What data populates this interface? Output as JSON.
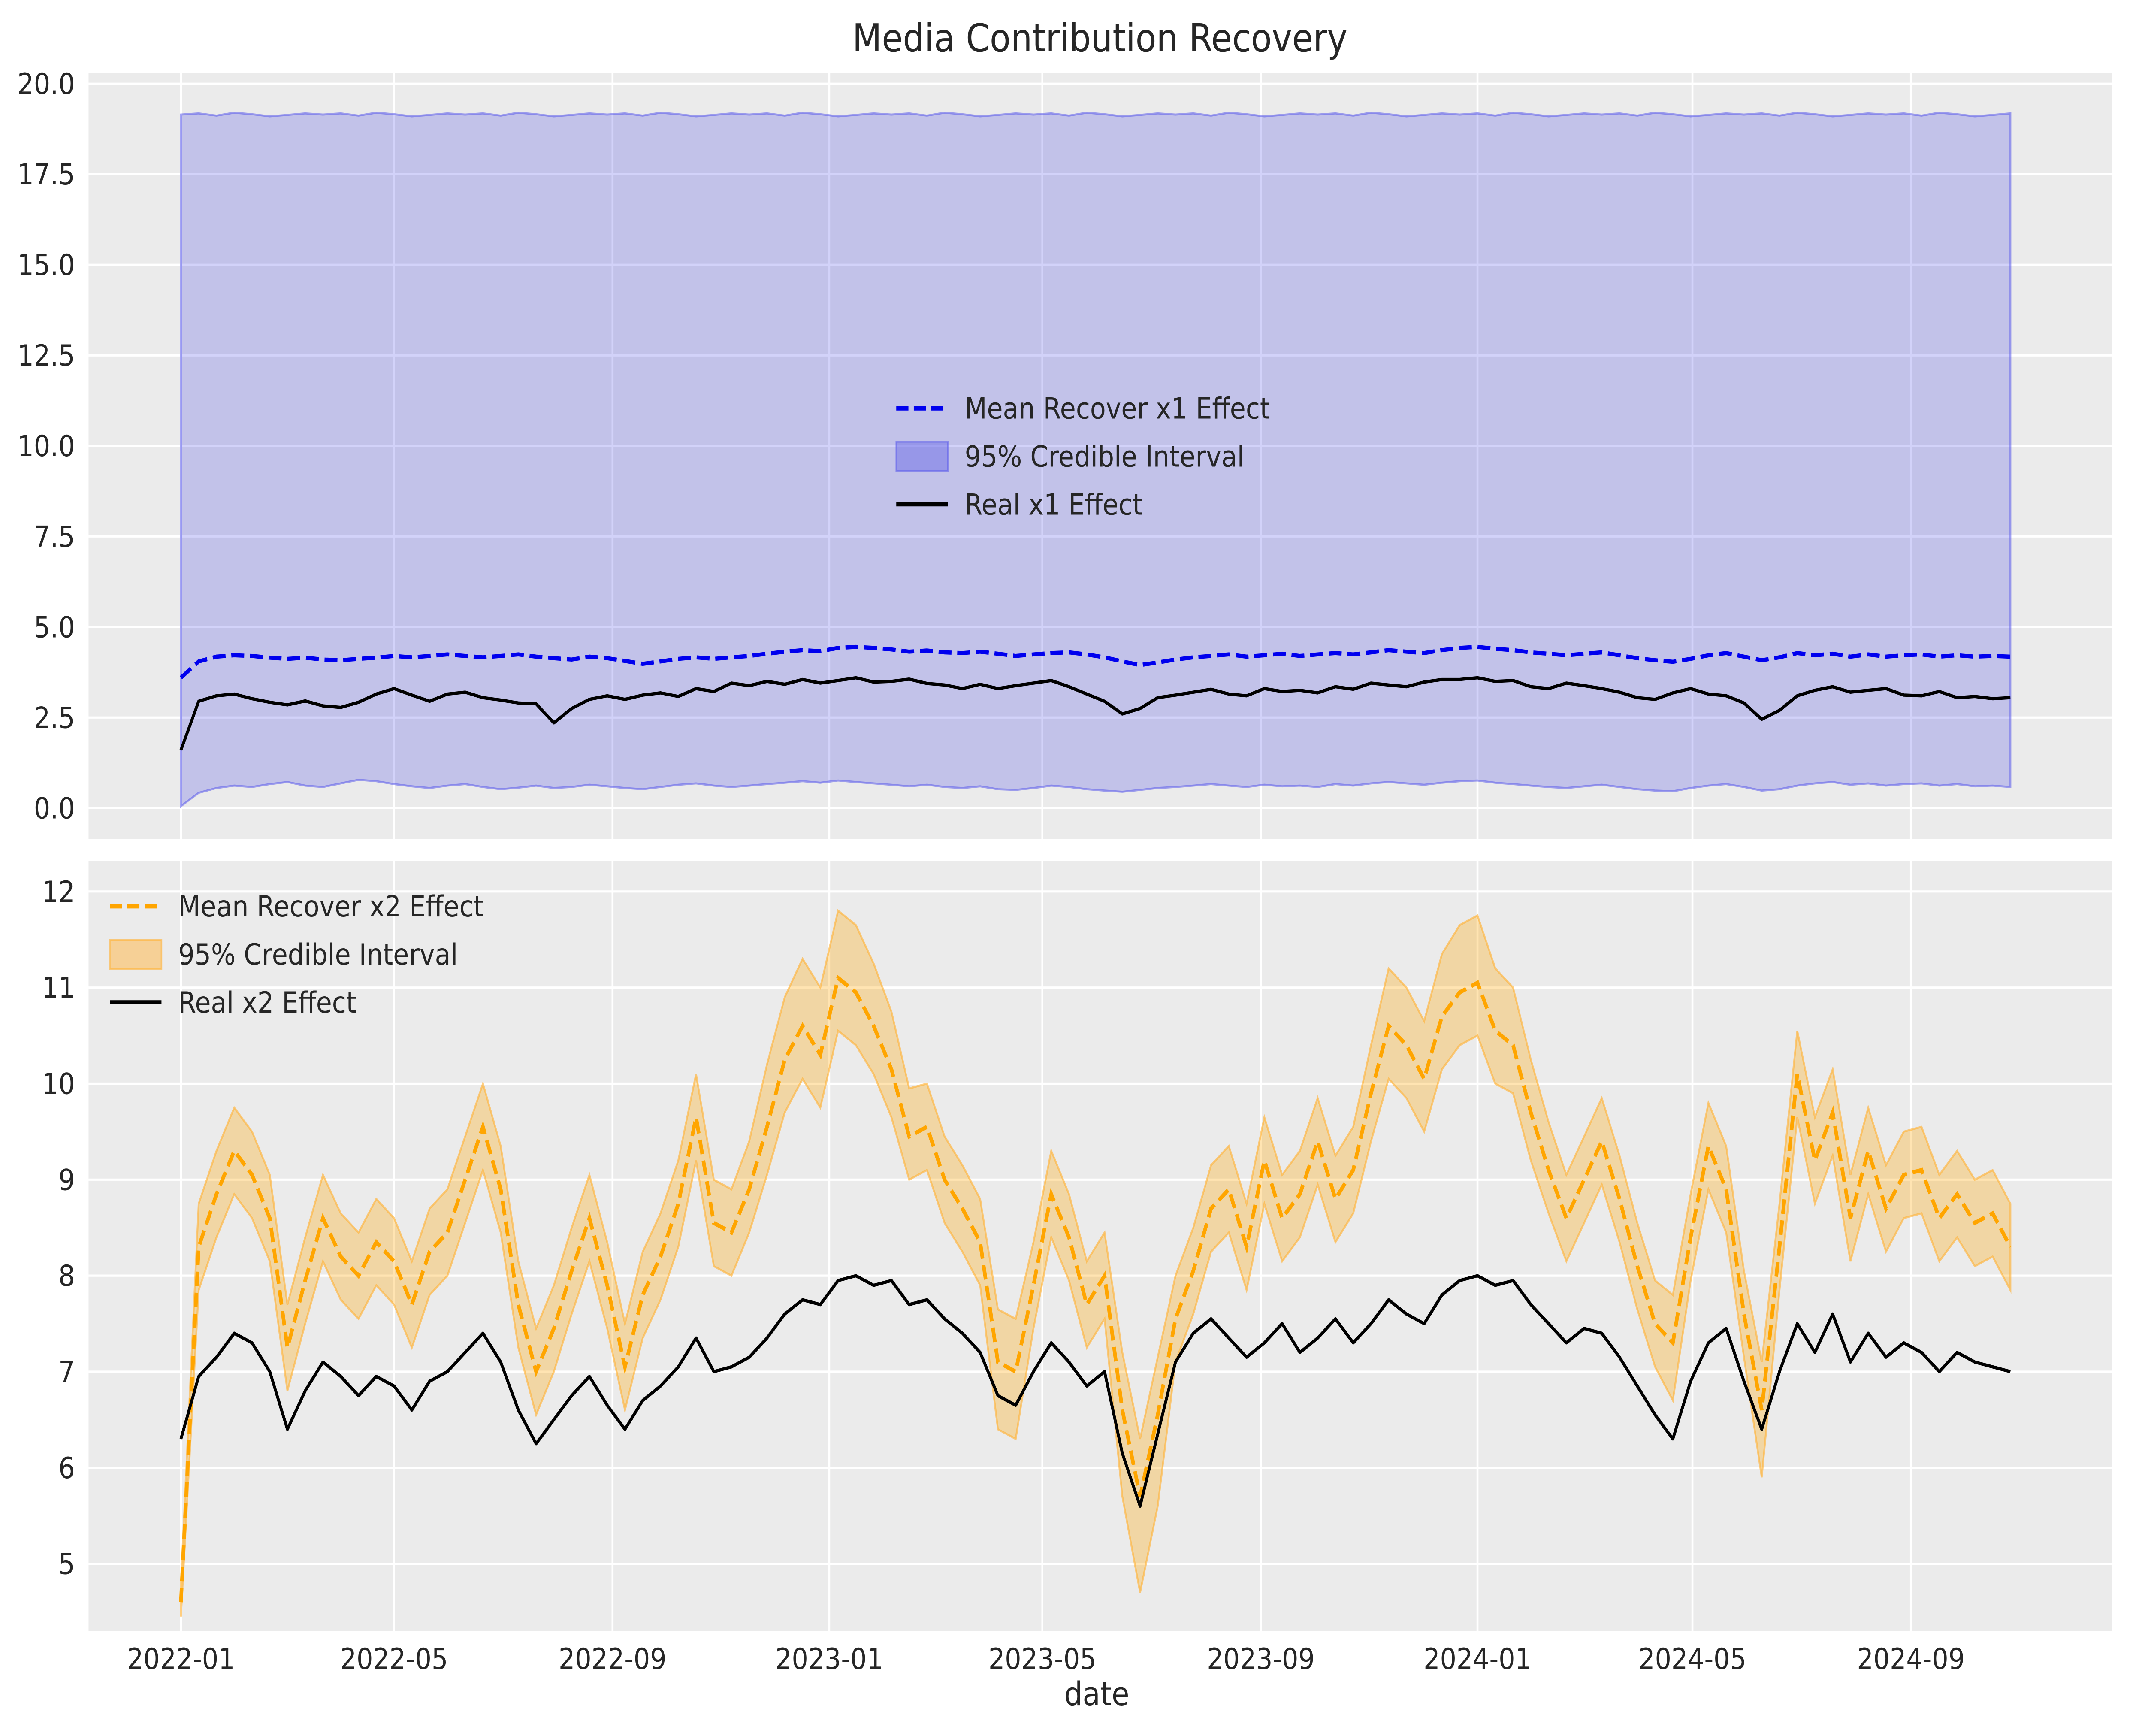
{
  "title": "Media Contribution Recovery",
  "xlabel": "date",
  "colors": {
    "figure_bg": "#ffffff",
    "panel_bg": "#ebebeb",
    "grid": "#ffffff",
    "text": "#262626",
    "x1_mean": "#0000ee",
    "x1_band_fill": "rgba(60,60,230,0.23)",
    "x1_band_edge": "rgba(90,90,235,0.55)",
    "x1_legend_patch": "rgba(100,100,230,0.45)",
    "x2_mean": "#ffa500",
    "x2_band_fill": "rgba(255,165,0,0.30)",
    "x2_band_edge": "rgba(255,180,60,0.65)",
    "x2_legend_patch": "rgba(255,185,80,0.55)",
    "real_line": "#000000"
  },
  "chart_data": [
    {
      "type": "line",
      "panel": "top",
      "x_start_date": "2022-01-01",
      "x_step_days": 10,
      "xlim_days": [
        -52,
        1087
      ],
      "ylim": [
        -0.85,
        20.3
      ],
      "yticks": [
        0.0,
        2.5,
        5.0,
        7.5,
        10.0,
        12.5,
        15.0,
        17.5,
        20.0
      ],
      "ytick_labels": [
        "0.0",
        "2.5",
        "5.0",
        "7.5",
        "10.0",
        "12.5",
        "15.0",
        "17.5",
        "20.0"
      ],
      "legend": [
        {
          "sample": "dashed",
          "label": "Mean Recover x1 Effect"
        },
        {
          "sample": "patch",
          "label": "95% Credible Interval"
        },
        {
          "sample": "line",
          "label": "Real x1 Effect"
        }
      ],
      "legend_pos": "center",
      "series": [
        {
          "name": "Mean Recover x1 Effect",
          "style": "dashed",
          "values": [
            3.6,
            4.05,
            4.18,
            4.22,
            4.2,
            4.15,
            4.12,
            4.15,
            4.1,
            4.08,
            4.12,
            4.15,
            4.2,
            4.16,
            4.2,
            4.24,
            4.2,
            4.16,
            4.2,
            4.24,
            4.18,
            4.14,
            4.1,
            4.18,
            4.14,
            4.06,
            3.98,
            4.05,
            4.12,
            4.16,
            4.12,
            4.16,
            4.2,
            4.26,
            4.32,
            4.36,
            4.33,
            4.42,
            4.45,
            4.42,
            4.38,
            4.32,
            4.35,
            4.3,
            4.28,
            4.32,
            4.26,
            4.2,
            4.24,
            4.28,
            4.3,
            4.24,
            4.16,
            4.05,
            3.95,
            4.02,
            4.1,
            4.16,
            4.2,
            4.24,
            4.18,
            4.22,
            4.26,
            4.2,
            4.24,
            4.28,
            4.24,
            4.3,
            4.36,
            4.32,
            4.28,
            4.36,
            4.42,
            4.45,
            4.4,
            4.36,
            4.3,
            4.26,
            4.22,
            4.26,
            4.3,
            4.22,
            4.14,
            4.08,
            4.04,
            4.12,
            4.22,
            4.28,
            4.18,
            4.08,
            4.16,
            4.28,
            4.22,
            4.26,
            4.18,
            4.24,
            4.18,
            4.22,
            4.24,
            4.18,
            4.22,
            4.18,
            4.2,
            4.18
          ]
        },
        {
          "name": "95% Credible Interval upper",
          "style": "band_upper",
          "values": [
            19.15,
            19.18,
            19.12,
            19.2,
            19.16,
            19.1,
            19.14,
            19.18,
            19.15,
            19.18,
            19.12,
            19.2,
            19.16,
            19.1,
            19.14,
            19.18,
            19.15,
            19.18,
            19.12,
            19.2,
            19.16,
            19.1,
            19.14,
            19.18,
            19.15,
            19.18,
            19.12,
            19.2,
            19.16,
            19.1,
            19.14,
            19.18,
            19.15,
            19.18,
            19.12,
            19.2,
            19.16,
            19.1,
            19.14,
            19.18,
            19.15,
            19.18,
            19.12,
            19.2,
            19.16,
            19.1,
            19.14,
            19.18,
            19.15,
            19.18,
            19.12,
            19.2,
            19.16,
            19.1,
            19.14,
            19.18,
            19.15,
            19.18,
            19.12,
            19.2,
            19.16,
            19.1,
            19.14,
            19.18,
            19.15,
            19.18,
            19.12,
            19.2,
            19.16,
            19.1,
            19.14,
            19.18,
            19.15,
            19.18,
            19.12,
            19.2,
            19.16,
            19.1,
            19.14,
            19.18,
            19.15,
            19.18,
            19.12,
            19.2,
            19.16,
            19.1,
            19.14,
            19.18,
            19.15,
            19.18,
            19.12,
            19.2,
            19.16,
            19.1,
            19.14,
            19.18,
            19.15,
            19.18,
            19.12,
            19.2,
            19.16,
            19.1,
            19.14,
            19.18
          ]
        },
        {
          "name": "95% Credible Interval lower",
          "style": "band_lower",
          "values": [
            0.05,
            0.42,
            0.55,
            0.62,
            0.58,
            0.66,
            0.72,
            0.62,
            0.58,
            0.68,
            0.78,
            0.74,
            0.66,
            0.6,
            0.55,
            0.62,
            0.66,
            0.58,
            0.52,
            0.56,
            0.62,
            0.55,
            0.58,
            0.64,
            0.6,
            0.55,
            0.52,
            0.58,
            0.64,
            0.68,
            0.62,
            0.58,
            0.62,
            0.66,
            0.7,
            0.74,
            0.7,
            0.76,
            0.72,
            0.68,
            0.64,
            0.6,
            0.64,
            0.58,
            0.55,
            0.6,
            0.52,
            0.5,
            0.55,
            0.62,
            0.58,
            0.52,
            0.48,
            0.45,
            0.5,
            0.55,
            0.58,
            0.62,
            0.66,
            0.62,
            0.58,
            0.64,
            0.6,
            0.62,
            0.58,
            0.66,
            0.62,
            0.68,
            0.72,
            0.68,
            0.64,
            0.7,
            0.74,
            0.76,
            0.7,
            0.66,
            0.62,
            0.58,
            0.55,
            0.6,
            0.64,
            0.58,
            0.52,
            0.48,
            0.46,
            0.55,
            0.62,
            0.66,
            0.58,
            0.48,
            0.52,
            0.62,
            0.68,
            0.72,
            0.64,
            0.68,
            0.62,
            0.66,
            0.68,
            0.62,
            0.66,
            0.6,
            0.62,
            0.58
          ]
        },
        {
          "name": "Real x1 Effect",
          "style": "solid",
          "values": [
            1.6,
            2.95,
            3.1,
            3.15,
            3.02,
            2.92,
            2.85,
            2.96,
            2.82,
            2.78,
            2.92,
            3.15,
            3.3,
            3.12,
            2.95,
            3.15,
            3.2,
            3.05,
            2.98,
            2.9,
            2.88,
            2.35,
            2.75,
            3.0,
            3.1,
            3.0,
            3.12,
            3.18,
            3.08,
            3.3,
            3.22,
            3.45,
            3.38,
            3.5,
            3.42,
            3.55,
            3.45,
            3.52,
            3.6,
            3.48,
            3.5,
            3.56,
            3.44,
            3.4,
            3.3,
            3.42,
            3.3,
            3.38,
            3.45,
            3.52,
            3.35,
            3.15,
            2.95,
            2.6,
            2.75,
            3.05,
            3.12,
            3.2,
            3.28,
            3.15,
            3.1,
            3.3,
            3.22,
            3.25,
            3.18,
            3.35,
            3.28,
            3.45,
            3.4,
            3.35,
            3.48,
            3.55,
            3.55,
            3.6,
            3.5,
            3.52,
            3.35,
            3.3,
            3.45,
            3.38,
            3.3,
            3.2,
            3.05,
            3.0,
            3.18,
            3.3,
            3.15,
            3.1,
            2.9,
            2.45,
            2.7,
            3.1,
            3.25,
            3.35,
            3.2,
            3.25,
            3.3,
            3.12,
            3.1,
            3.22,
            3.05,
            3.08,
            3.02,
            3.05
          ]
        }
      ]
    },
    {
      "type": "line",
      "panel": "bottom",
      "x_start_date": "2022-01-01",
      "x_step_days": 10,
      "xlim_days": [
        -52,
        1087
      ],
      "ylim": [
        4.3,
        12.32
      ],
      "yticks": [
        5,
        6,
        7,
        8,
        9,
        10,
        11,
        12
      ],
      "ytick_labels": [
        "5",
        "6",
        "7",
        "8",
        "9",
        "10",
        "11",
        "12"
      ],
      "xticks_days": [
        0,
        120,
        243,
        365,
        485,
        608,
        730,
        851,
        974
      ],
      "xtick_labels": [
        "2022-01",
        "2022-05",
        "2022-09",
        "2023-01",
        "2023-05",
        "2023-09",
        "2024-01",
        "2024-05",
        "2024-09"
      ],
      "legend": [
        {
          "sample": "dashed",
          "label": "Mean Recover x2 Effect"
        },
        {
          "sample": "patch",
          "label": "95% Credible Interval"
        },
        {
          "sample": "line",
          "label": "Real x2 Effect"
        }
      ],
      "legend_pos": "upper-left",
      "series": [
        {
          "name": "Mean Recover x2 Effect",
          "style": "dashed",
          "values": [
            4.6,
            8.3,
            8.85,
            9.3,
            9.05,
            8.6,
            7.25,
            7.95,
            8.6,
            8.2,
            8.0,
            8.35,
            8.15,
            7.7,
            8.25,
            8.45,
            9.0,
            9.55,
            8.9,
            7.7,
            7.0,
            7.45,
            8.05,
            8.6,
            7.9,
            7.05,
            7.8,
            8.2,
            8.75,
            9.65,
            8.55,
            8.45,
            8.9,
            9.55,
            10.25,
            10.6,
            10.3,
            11.1,
            10.95,
            10.6,
            10.15,
            9.45,
            9.55,
            9.0,
            8.7,
            8.35,
            7.1,
            7.0,
            7.9,
            8.85,
            8.4,
            7.7,
            8.0,
            6.6,
            5.7,
            6.55,
            7.55,
            8.05,
            8.7,
            8.9,
            8.3,
            9.2,
            8.6,
            8.85,
            9.4,
            8.8,
            9.1,
            9.9,
            10.6,
            10.4,
            10.05,
            10.7,
            10.95,
            11.05,
            10.55,
            10.4,
            9.7,
            9.1,
            8.6,
            9.0,
            9.4,
            8.8,
            8.1,
            7.5,
            7.3,
            8.4,
            9.35,
            8.9,
            7.6,
            6.6,
            8.3,
            10.1,
            9.2,
            9.7,
            8.6,
            9.3,
            8.7,
            9.05,
            9.1,
            8.6,
            8.85,
            8.55,
            8.65,
            8.3
          ]
        },
        {
          "name": "95% Credible Interval upper",
          "style": "band_upper",
          "values": [
            4.8,
            8.75,
            9.3,
            9.75,
            9.5,
            9.05,
            7.7,
            8.4,
            9.05,
            8.65,
            8.45,
            8.8,
            8.6,
            8.15,
            8.7,
            8.9,
            9.45,
            10.0,
            9.35,
            8.15,
            7.45,
            7.9,
            8.5,
            9.05,
            8.35,
            7.5,
            8.25,
            8.65,
            9.2,
            10.1,
            9.0,
            8.9,
            9.4,
            10.2,
            10.9,
            11.3,
            11.0,
            11.8,
            11.65,
            11.25,
            10.75,
            9.95,
            10.0,
            9.45,
            9.15,
            8.8,
            7.65,
            7.55,
            8.35,
            9.3,
            8.85,
            8.15,
            8.45,
            7.2,
            6.3,
            7.15,
            8.0,
            8.5,
            9.15,
            9.35,
            8.75,
            9.65,
            9.05,
            9.3,
            9.85,
            9.25,
            9.55,
            10.4,
            11.2,
            11.0,
            10.65,
            11.35,
            11.65,
            11.75,
            11.2,
            11.0,
            10.25,
            9.6,
            9.05,
            9.45,
            9.85,
            9.25,
            8.55,
            7.95,
            7.8,
            8.85,
            9.8,
            9.35,
            8.05,
            7.1,
            8.75,
            10.55,
            9.65,
            10.15,
            9.05,
            9.75,
            9.15,
            9.5,
            9.55,
            9.05,
            9.3,
            9.0,
            9.1,
            8.75
          ]
        },
        {
          "name": "95% Credible Interval lower",
          "style": "band_lower",
          "values": [
            4.45,
            7.85,
            8.4,
            8.85,
            8.6,
            8.15,
            6.8,
            7.5,
            8.15,
            7.75,
            7.55,
            7.9,
            7.7,
            7.25,
            7.8,
            8.0,
            8.55,
            9.1,
            8.45,
            7.25,
            6.55,
            7.0,
            7.6,
            8.15,
            7.45,
            6.6,
            7.35,
            7.75,
            8.3,
            9.2,
            8.1,
            8.0,
            8.45,
            9.05,
            9.7,
            10.05,
            9.75,
            10.55,
            10.4,
            10.1,
            9.65,
            9.0,
            9.1,
            8.55,
            8.25,
            7.9,
            6.4,
            6.3,
            7.45,
            8.4,
            7.95,
            7.25,
            7.55,
            5.7,
            4.7,
            5.6,
            7.1,
            7.6,
            8.25,
            8.45,
            7.85,
            8.75,
            8.15,
            8.4,
            8.95,
            8.35,
            8.65,
            9.4,
            10.05,
            9.85,
            9.5,
            10.15,
            10.4,
            10.5,
            10.0,
            9.9,
            9.2,
            8.65,
            8.15,
            8.55,
            8.95,
            8.35,
            7.65,
            7.05,
            6.7,
            7.95,
            8.9,
            8.45,
            7.15,
            5.9,
            7.85,
            9.65,
            8.75,
            9.25,
            8.15,
            8.85,
            8.25,
            8.6,
            8.65,
            8.15,
            8.4,
            8.1,
            8.2,
            7.85
          ]
        },
        {
          "name": "Real x2 Effect",
          "style": "solid",
          "values": [
            6.3,
            6.95,
            7.15,
            7.4,
            7.3,
            7.0,
            6.4,
            6.8,
            7.1,
            6.95,
            6.75,
            6.95,
            6.85,
            6.6,
            6.9,
            7.0,
            7.2,
            7.4,
            7.1,
            6.6,
            6.25,
            6.5,
            6.75,
            6.95,
            6.65,
            6.4,
            6.7,
            6.85,
            7.05,
            7.35,
            7.0,
            7.05,
            7.15,
            7.35,
            7.6,
            7.75,
            7.7,
            7.95,
            8.0,
            7.9,
            7.95,
            7.7,
            7.75,
            7.55,
            7.4,
            7.2,
            6.75,
            6.65,
            7.0,
            7.3,
            7.1,
            6.85,
            7.0,
            6.15,
            5.6,
            6.35,
            7.1,
            7.4,
            7.55,
            7.35,
            7.15,
            7.3,
            7.5,
            7.2,
            7.35,
            7.55,
            7.3,
            7.5,
            7.75,
            7.6,
            7.5,
            7.8,
            7.95,
            8.0,
            7.9,
            7.95,
            7.7,
            7.5,
            7.3,
            7.45,
            7.4,
            7.15,
            6.85,
            6.55,
            6.3,
            6.9,
            7.3,
            7.45,
            6.9,
            6.4,
            7.0,
            7.5,
            7.2,
            7.6,
            7.1,
            7.4,
            7.15,
            7.3,
            7.2,
            7.0,
            7.2,
            7.1,
            7.05,
            7.0
          ]
        }
      ]
    }
  ]
}
